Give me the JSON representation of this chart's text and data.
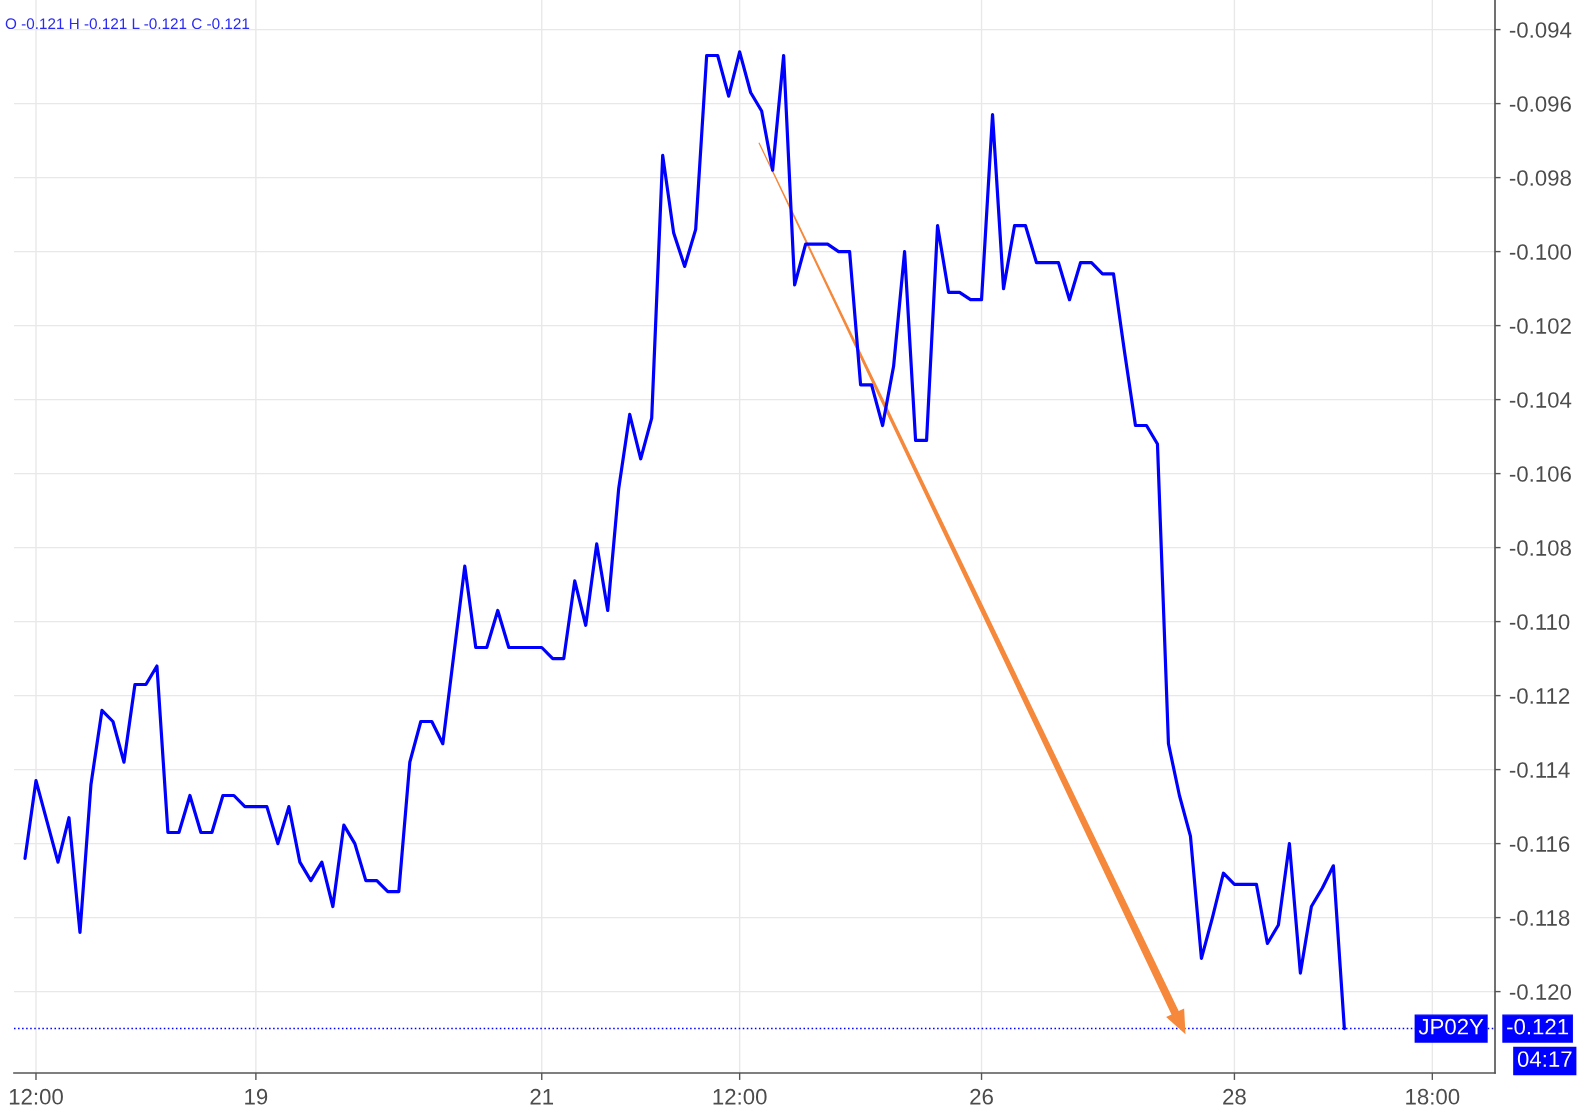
{
  "chart_data": {
    "type": "line",
    "categories": [
      null,
      "12:00",
      null,
      null,
      null,
      null,
      null,
      null,
      null,
      null,
      null,
      null,
      null,
      null,
      null,
      null,
      null,
      null,
      null,
      null,
      null,
      "19",
      null,
      null,
      null,
      null,
      null,
      null,
      null,
      null,
      null,
      null,
      null,
      null,
      null,
      null,
      null,
      null,
      null,
      null,
      null,
      null,
      null,
      null,
      null,
      null,
      null,
      "21",
      null,
      null,
      null,
      null,
      null,
      null,
      null,
      null,
      null,
      null,
      null,
      null,
      null,
      null,
      null,
      null,
      null,
      "12:00",
      null,
      null,
      null,
      null,
      null,
      null,
      null,
      null,
      null,
      null,
      null,
      null,
      null,
      null,
      null,
      null,
      null,
      null,
      null,
      null,
      null,
      "26",
      null,
      null,
      null,
      null,
      null,
      null,
      null,
      null,
      null,
      null,
      null,
      null,
      null,
      null,
      null,
      null,
      null,
      null,
      null,
      null,
      null,
      null,
      "28",
      null,
      null,
      null,
      null,
      null,
      null,
      null,
      null,
      null,
      null,
      null,
      null,
      null,
      null,
      null,
      null,
      null,
      "18:00",
      null,
      null,
      null,
      null,
      null
    ],
    "series": [
      {
        "name": "JP02Y",
        "color": "#0000ff",
        "values": [
          -0.1164,
          -0.1143,
          -0.1154,
          -0.1165,
          -0.1153,
          -0.1184,
          -0.1144,
          -0.1124,
          -0.1127,
          -0.1138,
          -0.1117,
          -0.1117,
          -0.1112,
          -0.1157,
          -0.1157,
          -0.1147,
          -0.1157,
          -0.1157,
          -0.1147,
          -0.1147,
          -0.115,
          -0.115,
          -0.115,
          -0.116,
          -0.115,
          -0.1165,
          -0.117,
          -0.1165,
          -0.1177,
          -0.1155,
          -0.116,
          -0.117,
          -0.117,
          -0.1173,
          -0.1173,
          -0.1138,
          -0.1127,
          -0.1127,
          -0.1133,
          -0.1109,
          -0.1085,
          -0.1107,
          -0.1107,
          -0.1097,
          -0.1107,
          -0.1107,
          -0.1107,
          -0.1107,
          -0.111,
          -0.111,
          -0.1089,
          -0.1101,
          -0.1079,
          -0.1097,
          -0.1064,
          -0.1044,
          -0.1056,
          -0.1045,
          -0.0974,
          -0.0995,
          -0.1004,
          -0.0994,
          -0.0947,
          -0.0947,
          -0.0958,
          -0.0946,
          -0.0957,
          -0.0962,
          -0.0978,
          -0.0947,
          -0.1009,
          -0.0998,
          -0.0998,
          -0.0998,
          -0.1,
          -0.1,
          -0.1036,
          -0.1036,
          -0.1047,
          -0.1031,
          -0.1,
          -0.1051,
          -0.1051,
          -0.0993,
          -0.1011,
          -0.1011,
          -0.1013,
          -0.1013,
          -0.0963,
          -0.101,
          -0.0993,
          -0.0993,
          -0.1003,
          -0.1003,
          -0.1003,
          -0.1013,
          -0.1003,
          -0.1003,
          -0.1006,
          -0.1006,
          -0.1027,
          -0.1047,
          -0.1047,
          -0.1052,
          -0.1133,
          -0.1147,
          -0.1158,
          -0.1191,
          -0.118,
          -0.1168,
          -0.1171,
          -0.1171,
          -0.1171,
          -0.1187,
          -0.1182,
          -0.116,
          -0.1195,
          -0.1177,
          -0.1172,
          -0.1166,
          -0.121,
          null,
          null,
          null,
          null,
          null,
          null,
          null,
          null,
          null,
          null,
          null,
          null,
          null
        ]
      }
    ],
    "ylim": [
      -0.1222,
      -0.0932
    ],
    "yticks": [
      -0.094,
      -0.096,
      -0.098,
      {
        "value": -0.1,
        "label": "-0.100"
      },
      -0.102,
      -0.104,
      -0.106,
      -0.108,
      {
        "value": -0.11,
        "label": "-0.110"
      },
      -0.112,
      -0.114,
      -0.116,
      -0.118,
      {
        "value": -0.12,
        "label": "-0.120"
      }
    ],
    "grid": true,
    "line_style": "solid",
    "ref_lines": [
      {
        "axis": "y",
        "value": -0.121,
        "label": "-0.121",
        "color": "#0000ff",
        "line_style": "dotted"
      }
    ],
    "annotations": [
      "O -0.121 H -0.121 L -0.121 C -0.121",
      "04:17"
    ]
  }
}
